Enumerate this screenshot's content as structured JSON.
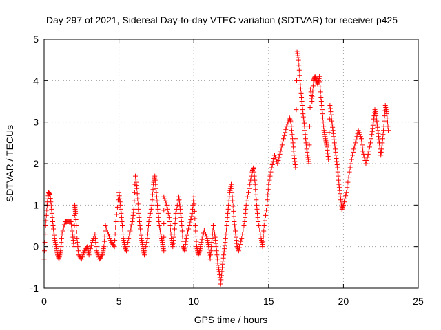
{
  "chart_data": {
    "type": "scatter",
    "title": "Day 297 of 2021, Sidereal Day-to-day VTEC variation (SDTVAR) for receiver p425",
    "xlabel": "GPS time / hours",
    "ylabel": "SDTVAR / TECUs",
    "xlim": [
      0,
      25
    ],
    "ylim": [
      -1,
      5
    ],
    "xticks": [
      0,
      5,
      10,
      15,
      20,
      25
    ],
    "yticks": [
      -1,
      0,
      1,
      2,
      3,
      4,
      5
    ],
    "xtick_labels": [
      "0",
      "5",
      "10",
      "15",
      "20",
      "25"
    ],
    "ytick_labels": [
      "-1",
      "0",
      "1",
      "2",
      "3",
      "4",
      "5"
    ],
    "grid": true,
    "marker": "plus",
    "series": [
      {
        "name": "SDTVAR",
        "color": "#ff0000",
        "points": [
          [
            0.0,
            -0.3
          ],
          [
            0.1,
            0.5
          ],
          [
            0.2,
            1.0
          ],
          [
            0.3,
            1.3
          ],
          [
            0.4,
            1.25
          ],
          [
            0.5,
            0.9
          ],
          [
            0.6,
            0.5
          ],
          [
            0.7,
            0.2
          ],
          [
            0.8,
            0.0
          ],
          [
            0.9,
            -0.2
          ],
          [
            1.0,
            -0.3
          ],
          [
            1.1,
            -0.1
          ],
          [
            1.2,
            0.3
          ],
          [
            1.4,
            0.6
          ],
          [
            1.6,
            0.6
          ],
          [
            1.8,
            0.6
          ],
          [
            1.9,
            0.3
          ],
          [
            2.0,
            0.0
          ],
          [
            2.05,
            1.0
          ],
          [
            2.1,
            0.8
          ],
          [
            2.2,
            0.2
          ],
          [
            2.3,
            -0.2
          ],
          [
            2.5,
            -0.3
          ],
          [
            2.7,
            -0.1
          ],
          [
            2.9,
            0.0
          ],
          [
            3.0,
            -0.2
          ],
          [
            3.2,
            0.1
          ],
          [
            3.4,
            0.3
          ],
          [
            3.5,
            -0.1
          ],
          [
            3.7,
            -0.3
          ],
          [
            3.9,
            -0.2
          ],
          [
            4.0,
            0.0
          ],
          [
            4.1,
            0.5
          ],
          [
            4.3,
            0.3
          ],
          [
            4.5,
            0.1
          ],
          [
            4.7,
            0.0
          ],
          [
            4.8,
            0.6
          ],
          [
            5.0,
            1.3
          ],
          [
            5.1,
            1.0
          ],
          [
            5.2,
            0.6
          ],
          [
            5.3,
            0.2
          ],
          [
            5.4,
            0.0
          ],
          [
            5.5,
            -0.1
          ],
          [
            5.7,
            0.3
          ],
          [
            5.9,
            0.6
          ],
          [
            6.0,
            0.9
          ],
          [
            6.1,
            1.7
          ],
          [
            6.2,
            1.4
          ],
          [
            6.3,
            0.9
          ],
          [
            6.4,
            0.5
          ],
          [
            6.5,
            0.2
          ],
          [
            6.6,
            0.0
          ],
          [
            6.7,
            -0.2
          ],
          [
            6.9,
            0.2
          ],
          [
            7.0,
            0.6
          ],
          [
            7.2,
            1.0
          ],
          [
            7.3,
            1.5
          ],
          [
            7.4,
            1.7
          ],
          [
            7.5,
            1.3
          ],
          [
            7.6,
            0.9
          ],
          [
            7.7,
            0.5
          ],
          [
            7.8,
            0.3
          ],
          [
            7.9,
            0.1
          ],
          [
            8.0,
            -0.1
          ],
          [
            8.0,
            1.2
          ],
          [
            8.2,
            1.0
          ],
          [
            8.4,
            0.6
          ],
          [
            8.5,
            0.2
          ],
          [
            8.6,
            0.0
          ],
          [
            8.7,
            0.3
          ],
          [
            8.8,
            0.8
          ],
          [
            9.0,
            1.2
          ],
          [
            9.1,
            0.9
          ],
          [
            9.2,
            0.5
          ],
          [
            9.3,
            0.0
          ],
          [
            9.4,
            -0.1
          ],
          [
            9.5,
            0.2
          ],
          [
            9.7,
            0.5
          ],
          [
            9.9,
            0.8
          ],
          [
            10.0,
            1.2
          ],
          [
            10.1,
            0.5
          ],
          [
            10.2,
            0.0
          ],
          [
            10.3,
            -0.2
          ],
          [
            10.4,
            -0.1
          ],
          [
            10.5,
            0.1
          ],
          [
            10.7,
            0.4
          ],
          [
            10.9,
            0.2
          ],
          [
            11.0,
            0.0
          ],
          [
            11.1,
            -0.3
          ],
          [
            11.2,
            0.1
          ],
          [
            11.3,
            0.5
          ],
          [
            11.4,
            0.3
          ],
          [
            11.5,
            0.0
          ],
          [
            11.6,
            -0.4
          ],
          [
            11.7,
            -0.6
          ],
          [
            11.8,
            -0.9
          ],
          [
            11.9,
            -0.5
          ],
          [
            12.0,
            -0.2
          ],
          [
            12.1,
            0.1
          ],
          [
            12.2,
            0.5
          ],
          [
            12.3,
            0.9
          ],
          [
            12.4,
            1.3
          ],
          [
            12.5,
            1.5
          ],
          [
            12.6,
            1.1
          ],
          [
            12.7,
            0.6
          ],
          [
            12.8,
            0.3
          ],
          [
            12.9,
            0.0
          ],
          [
            13.0,
            -0.1
          ],
          [
            13.2,
            0.2
          ],
          [
            13.4,
            0.6
          ],
          [
            13.5,
            1.0
          ],
          [
            13.7,
            1.4
          ],
          [
            13.9,
            1.8
          ],
          [
            14.0,
            1.9
          ],
          [
            14.1,
            1.5
          ],
          [
            14.2,
            1.0
          ],
          [
            14.3,
            0.6
          ],
          [
            14.5,
            0.2
          ],
          [
            14.6,
            0.0
          ],
          [
            14.7,
            0.5
          ],
          [
            14.9,
            1.0
          ],
          [
            15.0,
            1.5
          ],
          [
            15.2,
            1.9
          ],
          [
            15.4,
            2.2
          ],
          [
            15.6,
            2.0
          ],
          [
            15.8,
            2.3
          ],
          [
            16.0,
            2.6
          ],
          [
            16.2,
            2.9
          ],
          [
            16.4,
            3.1
          ],
          [
            16.5,
            3.0
          ],
          [
            16.6,
            2.6
          ],
          [
            16.7,
            2.2
          ],
          [
            16.8,
            1.9
          ],
          [
            16.9,
            4.7
          ],
          [
            17.0,
            4.5
          ],
          [
            17.1,
            4.0
          ],
          [
            17.2,
            3.6
          ],
          [
            17.3,
            3.2
          ],
          [
            17.4,
            2.9
          ],
          [
            17.5,
            2.5
          ],
          [
            17.6,
            2.2
          ],
          [
            17.7,
            2.0
          ],
          [
            17.8,
            3.8
          ],
          [
            17.9,
            3.5
          ],
          [
            18.0,
            4.0
          ],
          [
            18.1,
            4.1
          ],
          [
            18.2,
            4.0
          ],
          [
            18.3,
            3.9
          ],
          [
            18.4,
            4.1
          ],
          [
            18.5,
            3.6
          ],
          [
            18.6,
            3.2
          ],
          [
            18.7,
            2.8
          ],
          [
            18.8,
            2.6
          ],
          [
            18.9,
            2.4
          ],
          [
            19.0,
            2.1
          ],
          [
            19.1,
            3.4
          ],
          [
            19.2,
            3.1
          ],
          [
            19.3,
            2.8
          ],
          [
            19.4,
            2.5
          ],
          [
            19.5,
            2.2
          ],
          [
            19.6,
            1.9
          ],
          [
            19.7,
            1.5
          ],
          [
            19.8,
            1.2
          ],
          [
            19.9,
            0.9
          ],
          [
            20.0,
            1.0
          ],
          [
            20.2,
            1.3
          ],
          [
            20.4,
            1.8
          ],
          [
            20.6,
            2.2
          ],
          [
            20.8,
            2.5
          ],
          [
            21.0,
            2.8
          ],
          [
            21.2,
            2.6
          ],
          [
            21.3,
            2.3
          ],
          [
            21.5,
            2.0
          ],
          [
            21.7,
            2.3
          ],
          [
            21.9,
            2.7
          ],
          [
            22.0,
            3.0
          ],
          [
            22.1,
            3.3
          ],
          [
            22.2,
            3.1
          ],
          [
            22.3,
            2.8
          ],
          [
            22.4,
            2.5
          ],
          [
            22.5,
            2.2
          ],
          [
            22.6,
            2.5
          ],
          [
            22.7,
            2.9
          ],
          [
            22.8,
            3.4
          ],
          [
            22.9,
            3.2
          ],
          [
            23.0,
            2.8
          ]
        ]
      }
    ]
  }
}
